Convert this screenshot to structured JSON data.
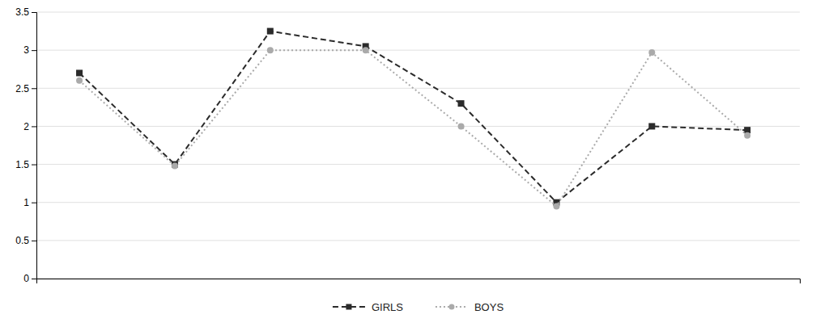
{
  "chart_data": {
    "type": "line",
    "x": [
      1,
      2,
      3,
      4,
      5,
      6,
      7,
      8
    ],
    "series": [
      {
        "name": "GIRLS",
        "color": "#2b2b2b",
        "line_style": "dashed",
        "marker": "square",
        "values": [
          2.7,
          1.5,
          3.25,
          3.05,
          2.3,
          1.0,
          2.0,
          1.95
        ]
      },
      {
        "name": "BOYS",
        "color": "#aaaaaa",
        "line_style": "dotted",
        "marker": "circle",
        "values": [
          2.6,
          1.48,
          3.0,
          3.0,
          2.0,
          0.95,
          2.97,
          1.88
        ]
      }
    ],
    "xlim": [
      0.55,
      8.55
    ],
    "ylim": [
      0,
      3.5
    ],
    "yticks": [
      0,
      0.5,
      1,
      1.5,
      2,
      2.5,
      3,
      3.5
    ],
    "grid": true,
    "legend": "bottom",
    "tick_labels": "y"
  }
}
